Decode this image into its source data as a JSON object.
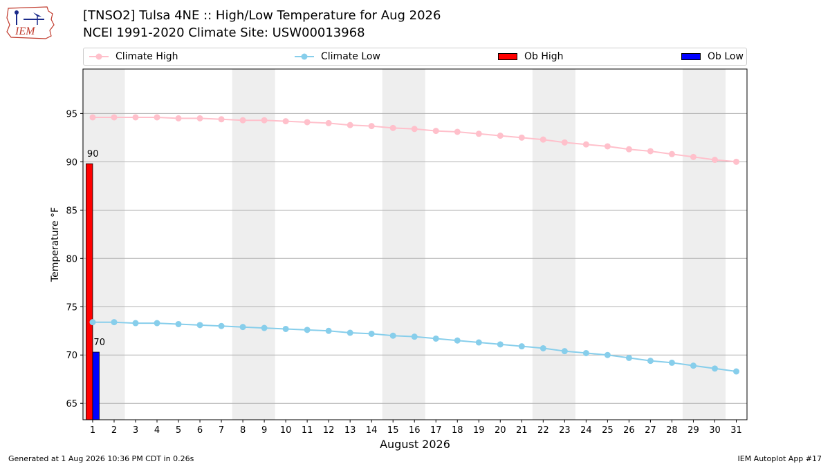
{
  "logo": {
    "text": "IEM"
  },
  "header": {
    "title_line1": "[TNSO2] Tulsa 4NE :: High/Low Temperature for Aug 2026",
    "title_line2": "NCEI 1991-2020 Climate Site: USW00013968"
  },
  "footer": {
    "left": "Generated at 1 Aug 2026 10:36 PM CDT in 0.26s",
    "right": "IEM Autoplot App #17"
  },
  "colors": {
    "climate_high": "#ffc0cb",
    "climate_low": "#87ceeb",
    "ob_high": "#ff0000",
    "ob_low": "#0000ff",
    "weekend_shade": "#eeeeee",
    "grid": "#b0b0b0"
  },
  "chart_data": {
    "type": "line",
    "xlabel": "August 2026",
    "ylabel": "Temperature °F",
    "x": [
      1,
      2,
      3,
      4,
      5,
      6,
      7,
      8,
      9,
      10,
      11,
      12,
      13,
      14,
      15,
      16,
      17,
      18,
      19,
      20,
      21,
      22,
      23,
      24,
      25,
      26,
      27,
      28,
      29,
      30,
      31
    ],
    "ylim": [
      63.3,
      99.6
    ],
    "yticks": [
      65,
      70,
      75,
      80,
      85,
      90,
      95
    ],
    "grid": "horizontal",
    "legend_position": "top",
    "weekend_shading": [
      [
        1,
        2
      ],
      [
        8,
        9
      ],
      [
        15,
        16
      ],
      [
        22,
        23
      ],
      [
        29,
        30
      ]
    ],
    "series": [
      {
        "name": "Climate High",
        "kind": "line",
        "values": [
          94.6,
          94.6,
          94.6,
          94.6,
          94.5,
          94.5,
          94.4,
          94.3,
          94.3,
          94.2,
          94.1,
          94.0,
          93.8,
          93.7,
          93.5,
          93.4,
          93.2,
          93.1,
          92.9,
          92.7,
          92.5,
          92.3,
          92.0,
          91.8,
          91.6,
          91.3,
          91.1,
          90.8,
          90.5,
          90.2,
          90.0
        ]
      },
      {
        "name": "Climate Low",
        "kind": "line",
        "values": [
          73.4,
          73.4,
          73.3,
          73.3,
          73.2,
          73.1,
          73.0,
          72.9,
          72.8,
          72.7,
          72.6,
          72.5,
          72.3,
          72.2,
          72.0,
          71.9,
          71.7,
          71.5,
          71.3,
          71.1,
          70.9,
          70.7,
          70.4,
          70.2,
          70.0,
          69.7,
          69.4,
          69.2,
          68.9,
          68.6,
          68.3
        ]
      },
      {
        "name": "Ob High",
        "kind": "bar",
        "x": [
          1
        ],
        "values": [
          89.8
        ],
        "labels": [
          "90"
        ]
      },
      {
        "name": "Ob Low",
        "kind": "bar",
        "x": [
          1
        ],
        "values": [
          70.3
        ],
        "labels": [
          "70"
        ]
      }
    ]
  }
}
